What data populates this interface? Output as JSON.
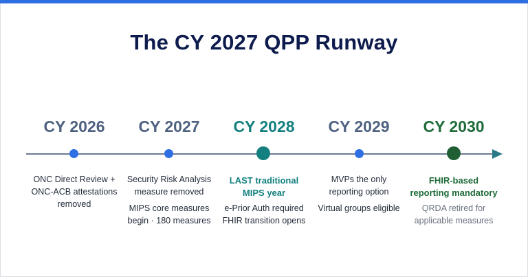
{
  "title": "The CY 2027 QPP Runway",
  "colors": {
    "accent_bar": "#2f6fe4",
    "year_slate": "#4e6180",
    "teal": "#13807f",
    "green": "#1f6b3a",
    "dot_blue": "#2f6fe4"
  },
  "milestones": [
    {
      "year": "CY 2026",
      "lines": [
        "ONC Direct Review +",
        "ONC-ACB attestations",
        "removed"
      ]
    },
    {
      "year": "CY 2027",
      "block1": [
        "Security Risk Analysis",
        "measure removed"
      ],
      "block2": [
        "MIPS core measures",
        "begin · 180 measures"
      ]
    },
    {
      "year": "CY 2028",
      "bold": [
        "LAST traditional",
        "MIPS year"
      ],
      "lines": [
        "e-Prior Auth required",
        "FHIR transition opens"
      ]
    },
    {
      "year": "CY 2029",
      "block1": [
        "MVPs the only",
        "reporting option"
      ],
      "block2": [
        "Virtual groups eligible"
      ]
    },
    {
      "year": "CY 2030",
      "bold": [
        "FHIR-based",
        "reporting mandatory"
      ],
      "lines": [
        "QRDA retired for",
        "applicable measures"
      ]
    }
  ]
}
